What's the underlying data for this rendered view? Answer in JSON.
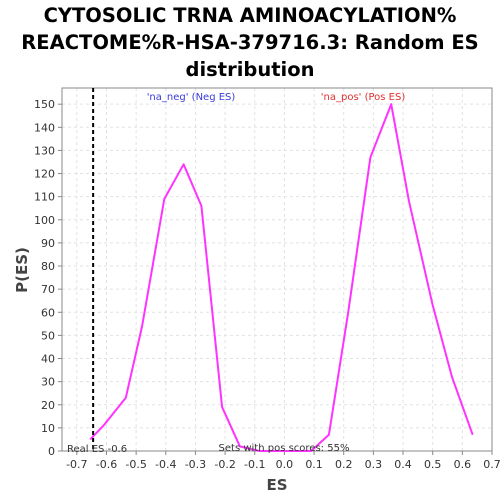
{
  "chart_data": {
    "type": "line",
    "title_lines": [
      "CYTOSOLIC TRNA AMINOACYLATION%",
      "REACTOME%R-HSA-379716.3: Random ES",
      "distribution"
    ],
    "xlabel": "ES",
    "ylabel": "P(ES)",
    "xlim": [
      -0.75,
      0.7
    ],
    "ylim": [
      0,
      157
    ],
    "x_ticks": [
      "-0.7",
      "-0.6",
      "-0.5",
      "-0.4",
      "-0.3",
      "-0.2",
      "-0.1",
      "0.0",
      "0.1",
      "0.2",
      "0.3",
      "0.4",
      "0.5",
      "0.6",
      "0.7"
    ],
    "y_ticks": [
      "0",
      "10",
      "20",
      "30",
      "40",
      "50",
      "60",
      "70",
      "80",
      "90",
      "100",
      "110",
      "120",
      "130",
      "140",
      "150"
    ],
    "grid": true,
    "line_color": "#ff33ff",
    "series": [
      {
        "x": [
          -0.655,
          -0.61,
          -0.535,
          -0.48,
          -0.405,
          -0.34,
          -0.28,
          -0.21,
          -0.15,
          -0.085,
          0.0,
          0.09,
          0.15,
          0.215,
          0.29,
          0.36,
          0.42,
          0.5,
          0.565,
          0.635
        ],
        "y": [
          5,
          11,
          23,
          54,
          109,
          124,
          106,
          19,
          2,
          0,
          0,
          0,
          7,
          60,
          127,
          150,
          108,
          63,
          32,
          7
        ]
      }
    ],
    "real_es": -0.645,
    "real_es_label": "Real ES -0.6",
    "neg_label": "'na_neg' (Neg ES)",
    "pos_label": "'na_pos' (Pos ES)",
    "footer_text": "Sets with pos scores: 55%"
  }
}
